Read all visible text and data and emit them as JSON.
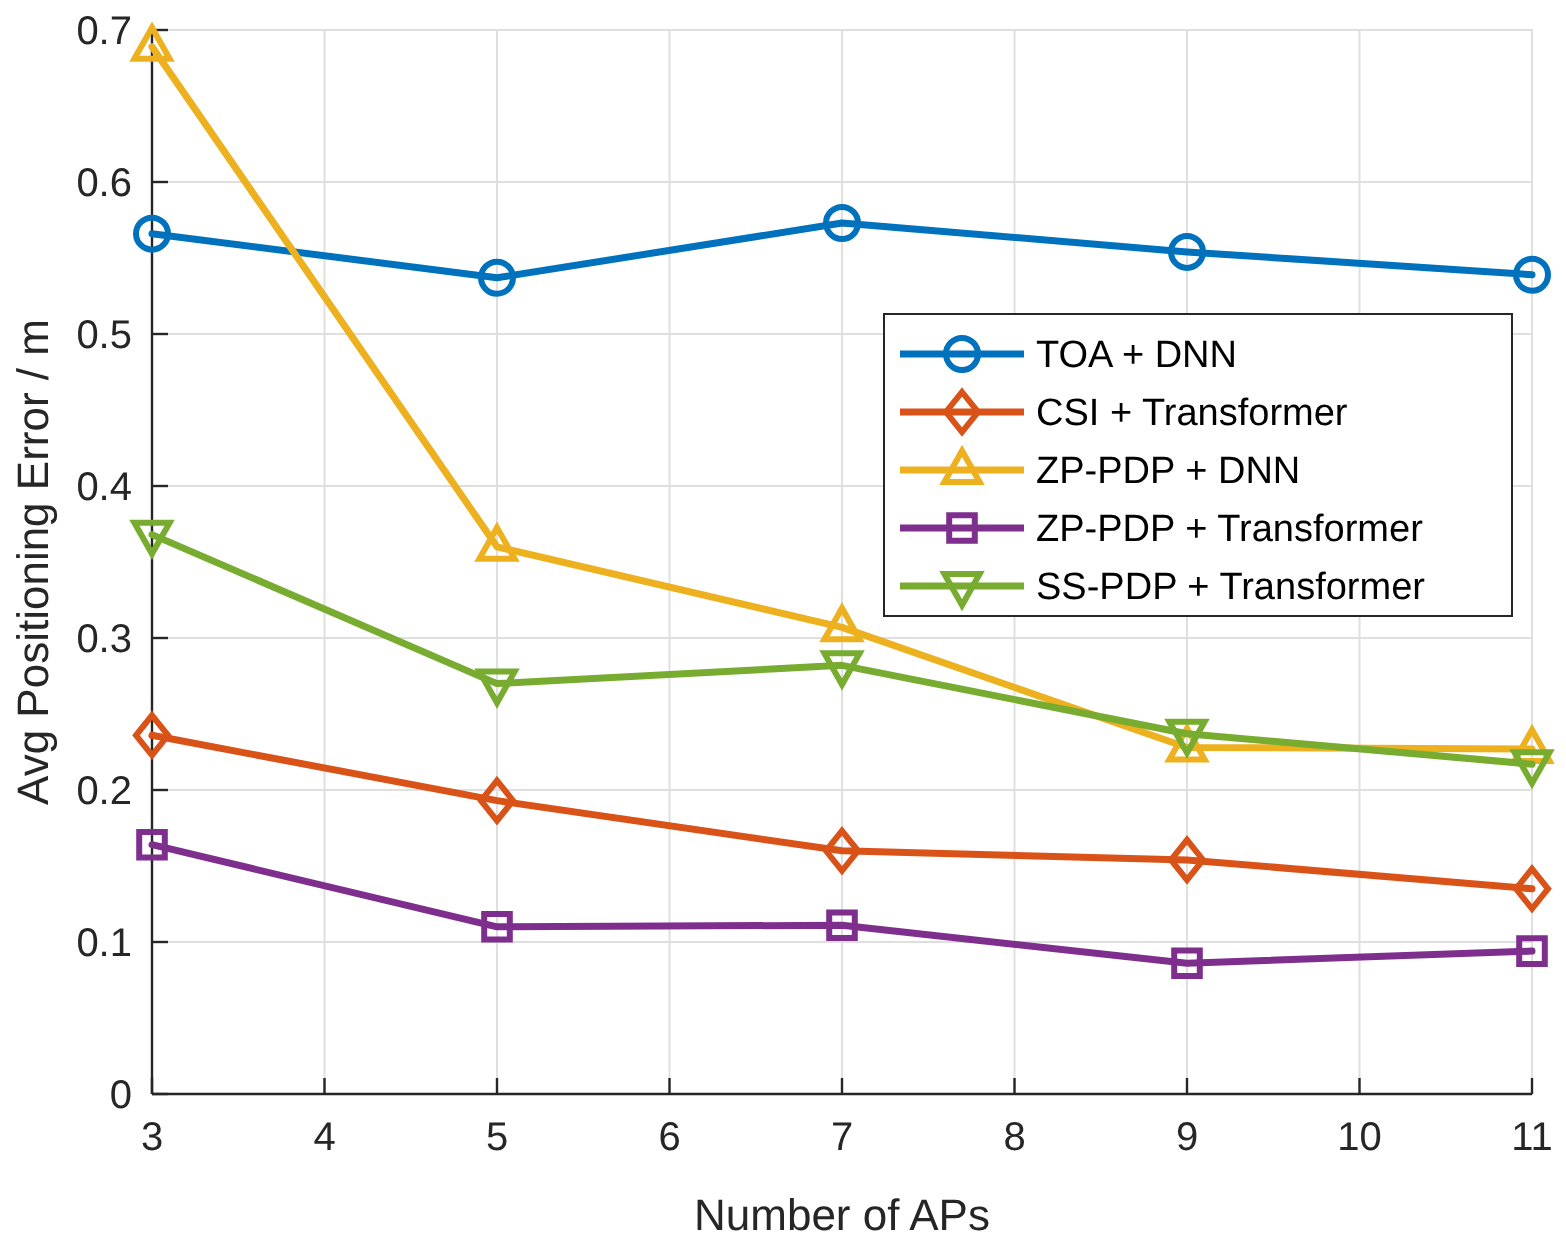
{
  "chart_data": {
    "type": "line",
    "xlabel": "Number of APs",
    "ylabel": "Avg Positioning Error / m",
    "x": [
      3,
      5,
      7,
      9,
      11
    ],
    "xlim": [
      3,
      11
    ],
    "xticks": [
      3,
      4,
      5,
      6,
      7,
      8,
      9,
      10,
      11
    ],
    "ylim": [
      0,
      0.7
    ],
    "yticks": [
      0,
      0.1,
      0.2,
      0.3,
      0.4,
      0.5,
      0.6,
      0.7
    ],
    "grid": true,
    "legend": "right",
    "line_style": "solid",
    "series": [
      {
        "name": "TOA + DNN",
        "color": "#0072bd",
        "marker": "circle",
        "values": [
          0.566,
          0.537,
          0.573,
          0.554,
          0.539
        ]
      },
      {
        "name": "CSI + Transformer",
        "color": "#d95319",
        "marker": "diamond",
        "values": [
          0.236,
          0.193,
          0.16,
          0.154,
          0.135
        ]
      },
      {
        "name": "ZP-PDP + DNN",
        "color": "#edb120",
        "marker": "triangle",
        "values": [
          0.689,
          0.36,
          0.307,
          0.228,
          0.227
        ]
      },
      {
        "name": "ZP-PDP + Transformer",
        "color": "#7e2f8e",
        "marker": "square",
        "values": [
          0.164,
          0.11,
          0.111,
          0.086,
          0.094
        ]
      },
      {
        "name": "SS-PDP + Transformer",
        "color": "#77ac30",
        "marker": "triangle-down",
        "values": [
          0.368,
          0.27,
          0.282,
          0.237,
          0.217
        ]
      }
    ]
  }
}
